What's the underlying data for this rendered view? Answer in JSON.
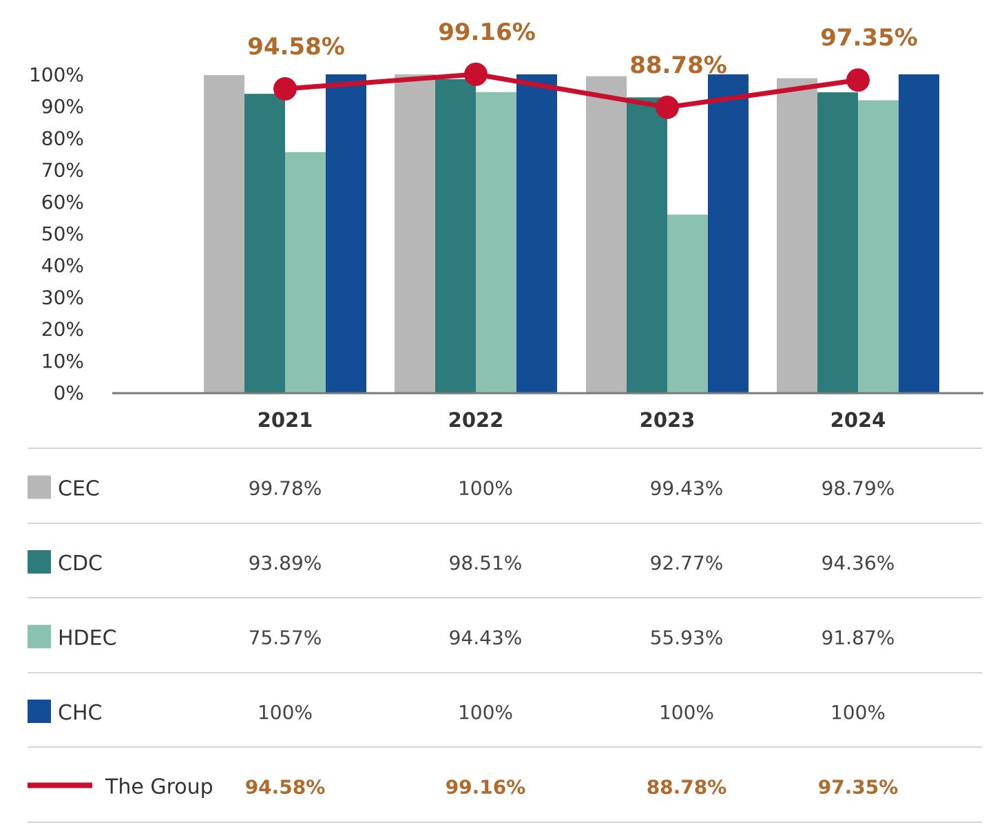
{
  "chart_data": {
    "type": "bar",
    "categories": [
      "2021",
      "2022",
      "2023",
      "2024"
    ],
    "y_ticks": [
      "100%",
      "90%",
      "80%",
      "70%",
      "60%",
      "50%",
      "40%",
      "30%",
      "20%",
      "10%",
      "0%"
    ],
    "ylim": [
      0,
      100
    ],
    "grid": false,
    "legend_placement": "table below chart",
    "series": [
      {
        "name": "CEC",
        "values": [
          99.78,
          100,
          99.43,
          98.79
        ],
        "labels": [
          "99.78%",
          "100%",
          "99.43%",
          "98.79%"
        ],
        "color": "#b7b7b7",
        "kind": "bar"
      },
      {
        "name": "CDC",
        "values": [
          93.89,
          98.51,
          92.77,
          94.36
        ],
        "labels": [
          "93.89%",
          "98.51%",
          "92.77%",
          "94.36%"
        ],
        "color": "#2e7b7b",
        "kind": "bar"
      },
      {
        "name": "HDEC",
        "values": [
          75.57,
          94.43,
          55.93,
          91.87
        ],
        "labels": [
          "75.57%",
          "94.43%",
          "55.93%",
          "91.87%"
        ],
        "color": "#8bc1b0",
        "kind": "bar"
      },
      {
        "name": "CHC",
        "values": [
          100,
          100,
          100,
          100
        ],
        "labels": [
          "100%",
          "100%",
          "100%",
          "100%"
        ],
        "color": "#124d95",
        "kind": "bar"
      }
    ],
    "line_series": {
      "name": "The Group",
      "values": [
        94.58,
        99.16,
        88.78,
        97.35
      ],
      "labels": [
        "94.58%",
        "99.16%",
        "88.78%",
        "97.35%"
      ],
      "color": "#c8102e",
      "label_color": "#b06a2c"
    }
  }
}
